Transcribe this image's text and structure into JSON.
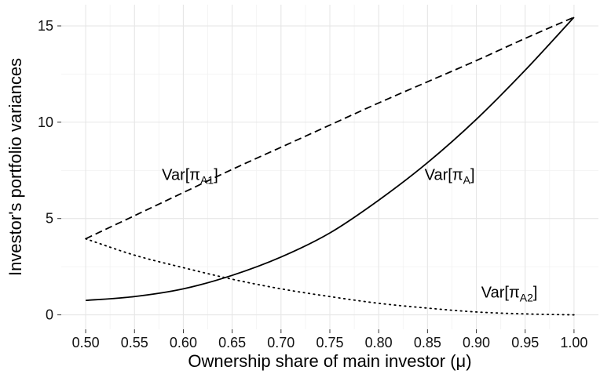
{
  "chart_data": {
    "type": "line",
    "xlabel": "Ownership share of main investor (μ)",
    "ylabel": "Investor's portfolio variances",
    "xlim": [
      0.475,
      1.025
    ],
    "ylim": [
      -0.75,
      16.1
    ],
    "x_ticks": [
      0.5,
      0.55,
      0.6,
      0.65,
      0.7,
      0.75,
      0.8,
      0.85,
      0.9,
      0.95,
      1.0
    ],
    "x_tick_labels": [
      "0.50",
      "0.55",
      "0.60",
      "0.65",
      "0.70",
      "0.75",
      "0.80",
      "0.85",
      "0.90",
      "0.95",
      "1.00"
    ],
    "y_ticks": [
      0,
      5,
      10,
      15
    ],
    "y_tick_labels": [
      "0",
      "5",
      "10",
      "15"
    ],
    "grid": true,
    "legend": "none",
    "x": [
      0.5,
      0.55,
      0.6,
      0.65,
      0.7,
      0.75,
      0.8,
      0.85,
      0.9,
      0.95,
      1.0
    ],
    "series": [
      {
        "label_main": "Var[π",
        "label_sub": "A",
        "label_end": "]",
        "label_x": 0.847,
        "label_y": 7.0,
        "line_style": "solid",
        "values": [
          0.75,
          0.95,
          1.35,
          2.05,
          3.0,
          4.25,
          5.95,
          7.9,
          10.15,
          12.7,
          15.45
        ]
      },
      {
        "label_main": "Var[π",
        "label_sub": "A1",
        "label_end": "]",
        "label_x": 0.578,
        "label_y": 7.0,
        "line_style": "dashed",
        "values": [
          3.95,
          5.15,
          6.35,
          7.55,
          8.7,
          9.85,
          11.0,
          12.1,
          13.2,
          14.35,
          15.45
        ]
      },
      {
        "label_main": "Var[π",
        "label_sub": "A2",
        "label_end": "]",
        "label_x": 0.905,
        "label_y": 0.9,
        "line_style": "dotted",
        "values": [
          3.95,
          3.1,
          2.45,
          1.85,
          1.35,
          0.95,
          0.6,
          0.35,
          0.15,
          0.05,
          0.0
        ]
      }
    ]
  }
}
